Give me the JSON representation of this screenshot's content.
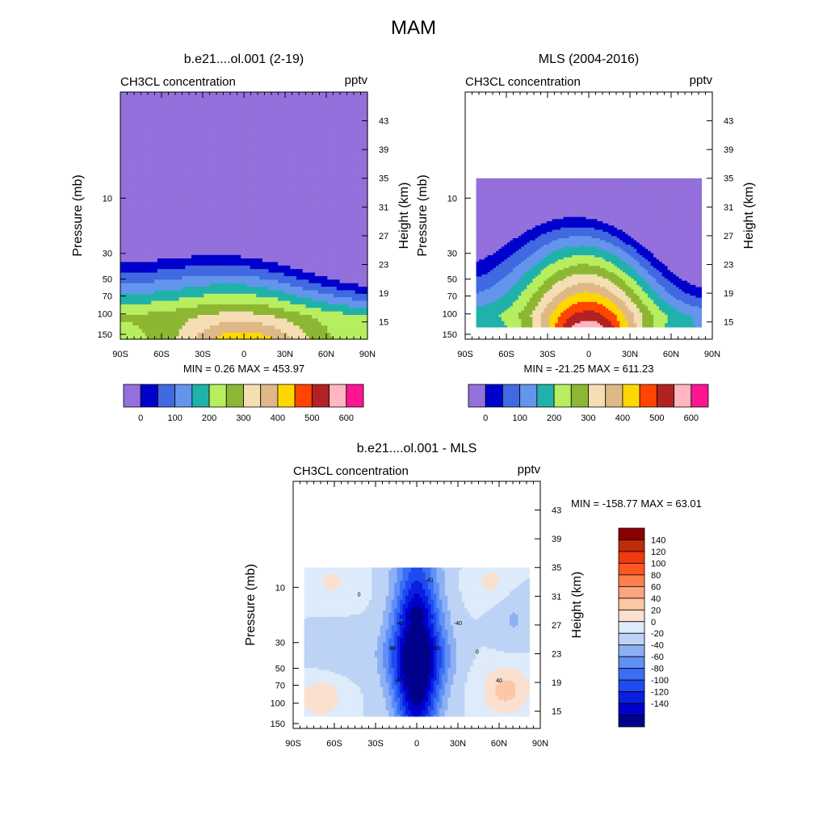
{
  "figure": {
    "title": "MAM"
  },
  "chart_data": [
    {
      "type": "heatmap",
      "title": "b.e21....ol.001 (2-19)",
      "left_string": "CH3CL concentration",
      "right_string": "pptv",
      "stats": "MIN =   0.26  MAX = 453.97",
      "xlabel": "",
      "ylabel": "Pressure (mb)",
      "ylabel_right": "Height (km)",
      "x_ticks": [
        "90S",
        "60S",
        "30S",
        "0",
        "30N",
        "60N",
        "90N"
      ],
      "y_ticks": [
        "10",
        "30",
        "50",
        "70",
        "100",
        "150"
      ],
      "y_ticks_right": [
        "43",
        "39",
        "35",
        "31",
        "27",
        "23",
        "19",
        "15"
      ],
      "xlim": [
        -90,
        90
      ],
      "zlim_km": [
        12.6,
        47
      ],
      "data_extent": {
        "lat": [
          -90,
          90
        ],
        "z_km": [
          12.6,
          47
        ]
      },
      "levels": [
        -50,
        0,
        50,
        100,
        150,
        200,
        250,
        300,
        350,
        400,
        450,
        500,
        550,
        600,
        650
      ],
      "colors": [
        "#9370DB",
        "#0000CD",
        "#4169E1",
        "#6495ED",
        "#20B2AA",
        "#B6EE60",
        "#8DB733",
        "#F5DEB3",
        "#DEB887",
        "#FFD700",
        "#FF4500",
        "#B22222",
        "#FFB6C1",
        "#FF1493"
      ],
      "colorbar_labels": [
        "0",
        "100",
        "200",
        "300",
        "400",
        "500",
        "600"
      ],
      "field": {
        "equator_peak": 470,
        "lower_floor": 220,
        "drop_per_km": 37,
        "peak_width_deg": 46,
        "peak_center_km": 12
      }
    },
    {
      "type": "heatmap",
      "title": "MLS (2004-2016)",
      "left_string": "CH3CL concentration",
      "right_string": "pptv",
      "stats": "MIN = -21.25  MAX = 611.23",
      "xlabel": "",
      "ylabel": "Pressure (mb)",
      "ylabel_right": "Height (km)",
      "x_ticks": [
        "90S",
        "60S",
        "30S",
        "0",
        "30N",
        "60N",
        "90N"
      ],
      "y_ticks": [
        "10",
        "30",
        "50",
        "70",
        "100",
        "150"
      ],
      "y_ticks_right": [
        "43",
        "39",
        "35",
        "31",
        "27",
        "23",
        "19",
        "15"
      ],
      "xlim": [
        -90,
        90
      ],
      "zlim_km": [
        12.6,
        47
      ],
      "data_extent": {
        "lat": [
          -82,
          82
        ],
        "z_km": [
          14.3,
          35
        ]
      },
      "levels": [
        -50,
        0,
        50,
        100,
        150,
        200,
        250,
        300,
        350,
        400,
        450,
        500,
        550,
        600,
        650
      ],
      "colors": [
        "#9370DB",
        "#0000CD",
        "#4169E1",
        "#6495ED",
        "#20B2AA",
        "#B6EE60",
        "#8DB733",
        "#F5DEB3",
        "#DEB887",
        "#FFD700",
        "#FF4500",
        "#B22222",
        "#FFB6C1",
        "#FF1493"
      ],
      "colorbar_labels": [
        "0",
        "100",
        "200",
        "300",
        "400",
        "500",
        "600"
      ],
      "field": {
        "equator_peak": 640,
        "lower_floor": 150,
        "drop_per_km": 30,
        "peak_width_deg": 36,
        "peak_center_km": 13
      }
    },
    {
      "type": "heatmap",
      "title": "b.e21....ol.001 - MLS",
      "left_string": "CH3CL concentration",
      "right_string": "pptv",
      "stats": "MIN = -158.77  MAX =  63.01",
      "xlabel": "",
      "ylabel": "Pressure (mb)",
      "ylabel_right": "Height (km)",
      "x_ticks": [
        "90S",
        "60S",
        "30S",
        "0",
        "30N",
        "60N",
        "90N"
      ],
      "y_ticks": [
        "10",
        "30",
        "50",
        "70",
        "100",
        "150"
      ],
      "y_ticks_right": [
        "43",
        "39",
        "35",
        "31",
        "27",
        "23",
        "19",
        "15"
      ],
      "xlim": [
        -90,
        90
      ],
      "zlim_km": [
        12.6,
        47
      ],
      "data_extent": {
        "lat": [
          -82,
          82
        ],
        "z_km": [
          14.3,
          35
        ]
      },
      "levels": [
        -160,
        -140,
        -120,
        -100,
        -80,
        -60,
        -40,
        -20,
        0,
        20,
        40,
        60,
        80,
        100,
        120,
        140,
        160
      ],
      "colors": [
        "#00008B",
        "#0000CD",
        "#0A1FE0",
        "#1E4BF0",
        "#3A6EF5",
        "#6090F5",
        "#8DB0F5",
        "#BDD3F5",
        "#DDEBFB",
        "#FBE0CF",
        "#FBC7A5",
        "#FBA57F",
        "#FF7F50",
        "#FF5722",
        "#F03A10",
        "#C02B0A",
        "#8B0000"
      ],
      "colorbar_labels": [
        "140",
        "120",
        "100",
        "80",
        "60",
        "40",
        "20",
        "0",
        "-20",
        "-40",
        "-60",
        "-80",
        "-100",
        "-120",
        "-140"
      ],
      "contour_labels": [
        "0",
        "-40",
        "-80",
        "-80",
        "-40",
        "-40",
        "-40",
        "0",
        "40"
      ],
      "field": {
        "type": "difference"
      }
    }
  ]
}
